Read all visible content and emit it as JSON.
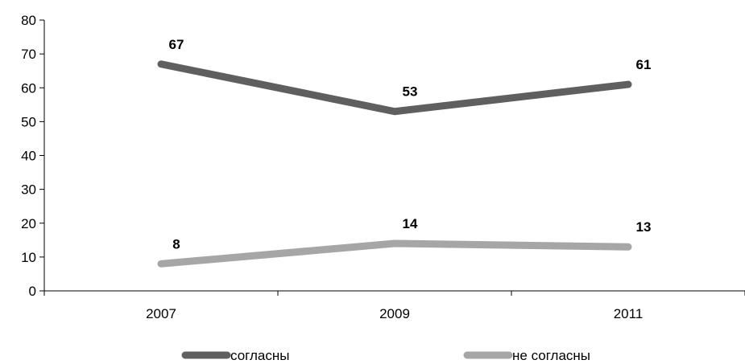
{
  "chart_data": {
    "type": "line",
    "title": "",
    "xlabel": "",
    "ylabel": "",
    "categories": [
      "2007",
      "2009",
      "2011"
    ],
    "ylim": [
      0,
      80
    ],
    "yticks": [
      0,
      10,
      20,
      30,
      40,
      50,
      60,
      70,
      80
    ],
    "grid": false,
    "legend_position": "bottom",
    "series": [
      {
        "name": "согласны",
        "values": [
          67,
          53,
          61
        ],
        "color": "#5f5f5f"
      },
      {
        "name": "не согласны",
        "values": [
          8,
          14,
          13
        ],
        "color": "#a6a6a6"
      }
    ]
  }
}
